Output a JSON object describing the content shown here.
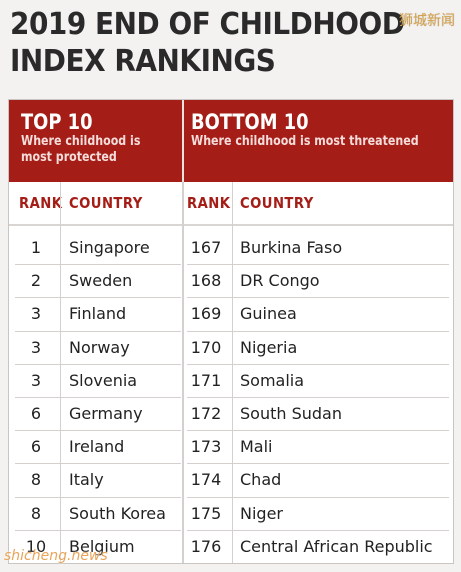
{
  "title_line1": "2019 END OF CHILDHOOD",
  "title_line2": "INDEX RANKINGS",
  "watermark_top": "狮城新闻",
  "watermark_bottom": "shicheng.news",
  "top": {
    "heading": "TOP 10",
    "sub1": "Where childhood is",
    "sub2": "most protected",
    "rank_label": "RANK",
    "country_label": "COUNTRY"
  },
  "bottom": {
    "heading": "BOTTOM 10",
    "sub1": "Where childhood is most threatened",
    "rank_label": "RANK",
    "country_label": "COUNTRY"
  },
  "rows": [
    {
      "top_rank": "1",
      "top_country": "Singapore",
      "bottom_rank": "167",
      "bottom_country": "Burkina Faso"
    },
    {
      "top_rank": "2",
      "top_country": "Sweden",
      "bottom_rank": "168",
      "bottom_country": "DR Congo"
    },
    {
      "top_rank": "3",
      "top_country": "Finland",
      "bottom_rank": "169",
      "bottom_country": "Guinea"
    },
    {
      "top_rank": "3",
      "top_country": "Norway",
      "bottom_rank": "170",
      "bottom_country": "Nigeria"
    },
    {
      "top_rank": "3",
      "top_country": "Slovenia",
      "bottom_rank": "171",
      "bottom_country": "Somalia"
    },
    {
      "top_rank": "6",
      "top_country": "Germany",
      "bottom_rank": "172",
      "bottom_country": "South Sudan"
    },
    {
      "top_rank": "6",
      "top_country": "Ireland",
      "bottom_rank": "173",
      "bottom_country": "Mali"
    },
    {
      "top_rank": "8",
      "top_country": "Italy",
      "bottom_rank": "174",
      "bottom_country": "Chad"
    },
    {
      "top_rank": "8",
      "top_country": "South Korea",
      "bottom_rank": "175",
      "bottom_country": "Niger"
    },
    {
      "top_rank": "10",
      "top_country": "Belgium",
      "bottom_rank": "176",
      "bottom_country": "Central African Republic"
    }
  ],
  "colors": {
    "accent": "#a51d17",
    "background": "#f4f2f0"
  }
}
